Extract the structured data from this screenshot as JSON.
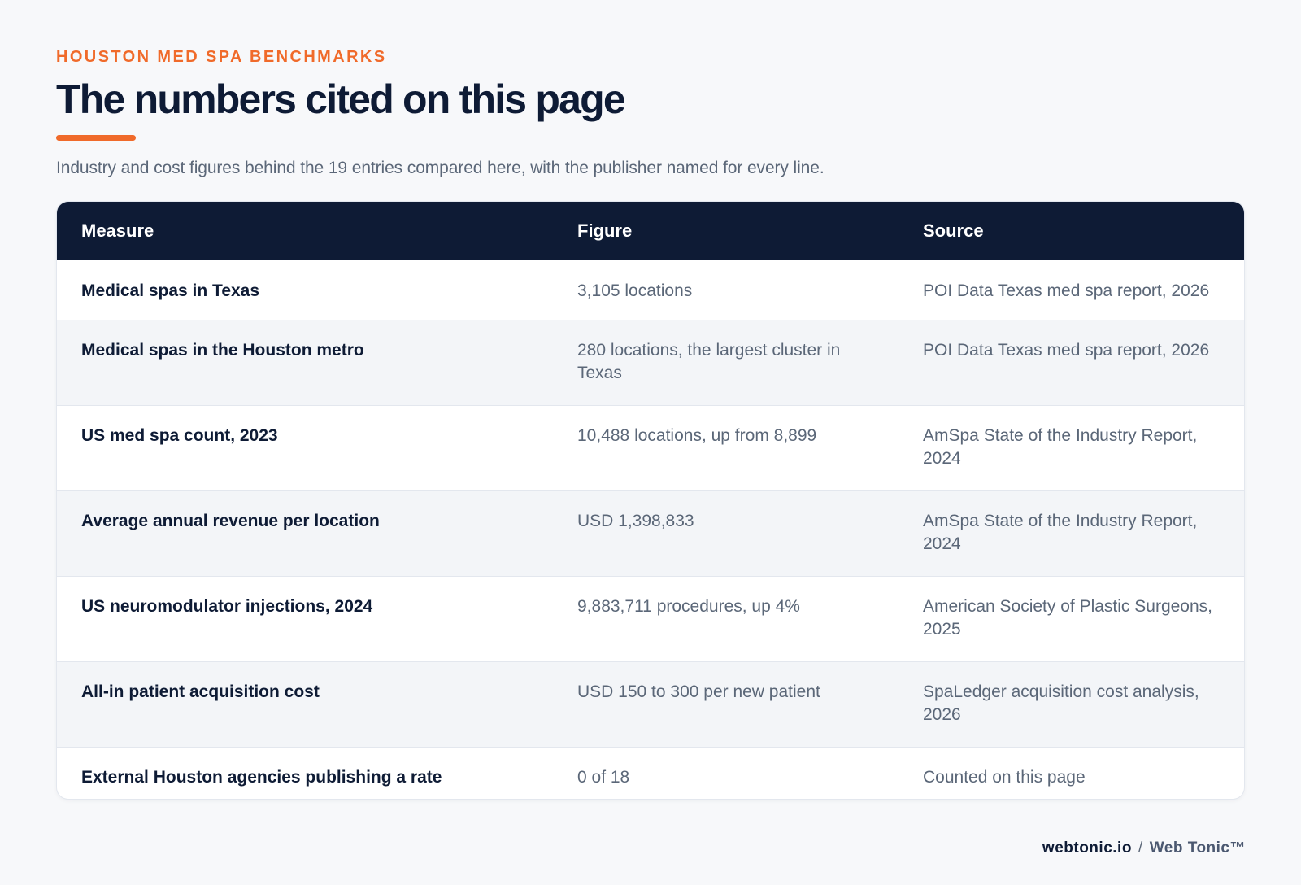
{
  "header": {
    "eyebrow": "HOUSTON MED SPA BENCHMARKS",
    "title": "The numbers cited on this page",
    "subtitle": "Industry and cost figures behind the 19 entries compared here, with the publisher named for every line."
  },
  "table": {
    "columns": [
      "Measure",
      "Figure",
      "Source"
    ],
    "rows": [
      {
        "measure": "Medical spas in Texas",
        "figure": "3,105 locations",
        "source": "POI Data Texas med spa report, 2026"
      },
      {
        "measure": "Medical spas in the Houston metro",
        "figure": "280 locations, the largest cluster in Texas",
        "source": "POI Data Texas med spa report, 2026"
      },
      {
        "measure": "US med spa count, 2023",
        "figure": "10,488 locations, up from 8,899",
        "source": "AmSpa State of the Industry Report, 2024"
      },
      {
        "measure": "Average annual revenue per location",
        "figure": "USD 1,398,833",
        "source": "AmSpa State of the Industry Report, 2024"
      },
      {
        "measure": "US neuromodulator injections, 2024",
        "figure": "9,883,711 procedures, up 4%",
        "source": "American Society of Plastic Surgeons, 2025"
      },
      {
        "measure": "All-in patient acquisition cost",
        "figure": "USD 150 to 300 per new patient",
        "source": "SpaLedger acquisition cost analysis, 2026"
      },
      {
        "measure": "External Houston agencies publishing a rate",
        "figure": "0 of 18",
        "source": "Counted on this page"
      }
    ]
  },
  "footer": {
    "domain": "webtonic.io",
    "separator": "/",
    "brand": "Web Tonic™"
  },
  "colors": {
    "accent": "#f06a2a",
    "navy": "#0e1b35",
    "muted_text": "#5b6778",
    "page_background": "#f7f8fa"
  }
}
